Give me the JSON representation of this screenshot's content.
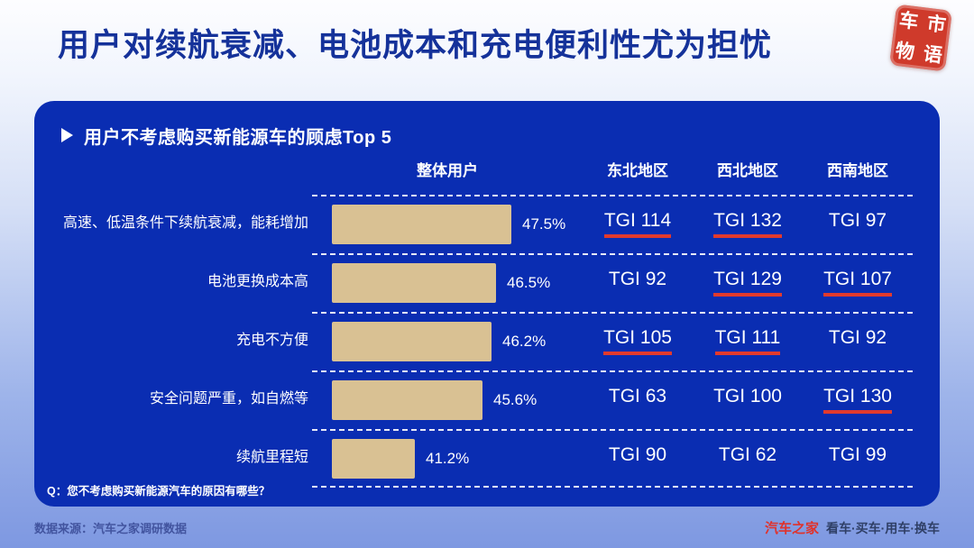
{
  "title": "用户对续航衰减、电池成本和充电便利性尤为担忧",
  "seal": {
    "chars": [
      "车",
      "市",
      "物",
      "语"
    ]
  },
  "panel": {
    "subtitle": "用户不考虑购买新能源车的顾虑Top 5",
    "question_note": "Q：您不考虑购买新能源汽车的原因有哪些？"
  },
  "chart_data": {
    "type": "bar",
    "title": "用户不考虑购买新能源车的顾虑Top 5",
    "orientation": "horizontal",
    "value_unit": "%",
    "value_axis_start": 36,
    "column_headers": [
      "整体用户",
      "东北地区",
      "西北地区",
      "西南地区"
    ],
    "rows": [
      {
        "label": "高速、低温条件下续航衰减，能耗增加",
        "value": 47.5,
        "value_label": "47.5%",
        "tgi": [
          {
            "text": "TGI 114",
            "highlight": true
          },
          {
            "text": "TGI 132",
            "highlight": true
          },
          {
            "text": "TGI 97",
            "highlight": false
          }
        ]
      },
      {
        "label": "电池更换成本高",
        "value": 46.5,
        "value_label": "46.5%",
        "tgi": [
          {
            "text": "TGI 92",
            "highlight": false
          },
          {
            "text": "TGI 129",
            "highlight": true
          },
          {
            "text": "TGI 107",
            "highlight": true
          }
        ]
      },
      {
        "label": "充电不方便",
        "value": 46.2,
        "value_label": "46.2%",
        "tgi": [
          {
            "text": "TGI 105",
            "highlight": true
          },
          {
            "text": "TGI 111",
            "highlight": true
          },
          {
            "text": "TGI 92",
            "highlight": false
          }
        ]
      },
      {
        "label": "安全问题严重，如自燃等",
        "value": 45.6,
        "value_label": "45.6%",
        "tgi": [
          {
            "text": "TGI 63",
            "highlight": false
          },
          {
            "text": "TGI 100",
            "highlight": false
          },
          {
            "text": "TGI 130",
            "highlight": true
          }
        ]
      },
      {
        "label": "续航里程短",
        "value": 41.2,
        "value_label": "41.2%",
        "tgi": [
          {
            "text": "TGI 90",
            "highlight": false
          },
          {
            "text": "TGI 62",
            "highlight": false
          },
          {
            "text": "TGI 99",
            "highlight": false
          }
        ]
      }
    ]
  },
  "footer": {
    "source": "数据来源：汽车之家调研数据",
    "brand": "汽车之家",
    "tagline": "看车·买车·用车·换车"
  },
  "colors": {
    "panel_bg": "#0a2db2",
    "title_text": "#15329a",
    "bar_fill": "#d9c193",
    "highlight_underline": "#e23a2d",
    "brand_red": "#e0322b",
    "seal_red": "#cf3a2b"
  }
}
